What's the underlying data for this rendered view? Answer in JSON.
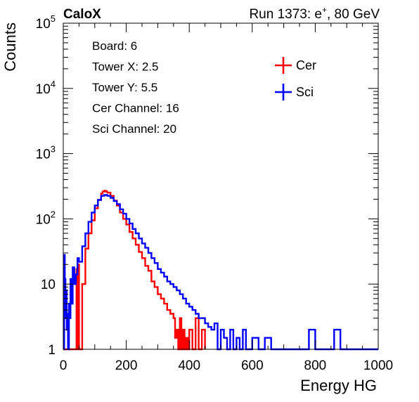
{
  "header": {
    "brand": "CaloX",
    "run_prefix": "Run 1373: e",
    "run_sup": "+",
    "run_suffix": ", 80 GeV"
  },
  "info": [
    {
      "key": "board",
      "text": "Board: 6"
    },
    {
      "key": "tower-x",
      "text": "Tower X: 2.5"
    },
    {
      "key": "tower-y",
      "text": "Tower Y: 5.5"
    },
    {
      "key": "cer-channel",
      "text": "Cer Channel: 16"
    },
    {
      "key": "sci-channel",
      "text": "Sci Channel: 20"
    }
  ],
  "chart_data": {
    "type": "line",
    "title": "",
    "xlabel": "Energy HG",
    "ylabel": "Counts",
    "xlim": [
      0,
      1000
    ],
    "ylim": [
      1,
      100000
    ],
    "yscale": "log",
    "grid": false,
    "legend_position": "top-right",
    "x_ticks": [
      {
        "value": 0,
        "label": "0"
      },
      {
        "value": 200,
        "label": "200"
      },
      {
        "value": 400,
        "label": "400"
      },
      {
        "value": 600,
        "label": "600"
      },
      {
        "value": 800,
        "label": "800"
      },
      {
        "value": 1000,
        "label": "1000"
      }
    ],
    "y_ticks": [
      {
        "value": 1,
        "base": "1",
        "exp": ""
      },
      {
        "value": 10,
        "base": "10",
        "exp": ""
      },
      {
        "value": 100,
        "base": "10",
        "exp": "2"
      },
      {
        "value": 1000,
        "base": "10",
        "exp": "3"
      },
      {
        "value": 10000,
        "base": "10",
        "exp": "4"
      },
      {
        "value": 100000,
        "base": "10",
        "exp": "5"
      }
    ],
    "series": [
      {
        "name": "Cer",
        "color": "#ff0000",
        "points": [
          [
            0,
            1
          ],
          [
            40,
            1
          ],
          [
            42,
            17
          ],
          [
            44,
            1
          ],
          [
            46,
            1
          ],
          [
            48,
            20
          ],
          [
            50,
            1
          ],
          [
            60,
            10
          ],
          [
            70,
            35
          ],
          [
            80,
            60
          ],
          [
            90,
            95
          ],
          [
            100,
            145
          ],
          [
            110,
            195
          ],
          [
            120,
            245
          ],
          [
            125,
            262
          ],
          [
            130,
            270
          ],
          [
            135,
            262
          ],
          [
            140,
            252
          ],
          [
            150,
            225
          ],
          [
            160,
            190
          ],
          [
            170,
            160
          ],
          [
            180,
            125
          ],
          [
            190,
            100
          ],
          [
            200,
            82
          ],
          [
            210,
            63
          ],
          [
            220,
            50
          ],
          [
            230,
            40
          ],
          [
            240,
            31
          ],
          [
            250,
            25
          ],
          [
            260,
            19
          ],
          [
            270,
            16
          ],
          [
            280,
            11
          ],
          [
            290,
            9
          ],
          [
            300,
            7
          ],
          [
            310,
            6
          ],
          [
            320,
            5
          ],
          [
            330,
            4
          ],
          [
            340,
            3.5
          ],
          [
            350,
            3
          ],
          [
            355,
            1.5
          ],
          [
            360,
            2
          ],
          [
            365,
            1
          ],
          [
            370,
            3
          ],
          [
            375,
            1
          ],
          [
            380,
            2
          ],
          [
            385,
            1
          ],
          [
            390,
            1.5
          ],
          [
            395,
            1
          ],
          [
            400,
            2
          ],
          [
            410,
            1
          ],
          [
            420,
            3
          ],
          [
            430,
            1
          ],
          [
            440,
            2
          ],
          [
            450,
            1
          ]
        ]
      },
      {
        "name": "Sci",
        "color": "#0000ff",
        "points": [
          [
            0,
            1
          ],
          [
            3,
            28
          ],
          [
            5,
            12
          ],
          [
            7,
            3
          ],
          [
            9,
            8
          ],
          [
            11,
            2
          ],
          [
            13,
            3.5
          ],
          [
            15,
            1
          ],
          [
            18,
            5
          ],
          [
            20,
            3
          ],
          [
            23,
            12
          ],
          [
            26,
            5
          ],
          [
            30,
            18
          ],
          [
            35,
            10
          ],
          [
            40,
            14
          ],
          [
            45,
            25
          ],
          [
            50,
            22
          ],
          [
            60,
            38
          ],
          [
            70,
            60
          ],
          [
            80,
            90
          ],
          [
            90,
            125
          ],
          [
            100,
            160
          ],
          [
            110,
            195
          ],
          [
            120,
            225
          ],
          [
            130,
            232
          ],
          [
            140,
            225
          ],
          [
            150,
            210
          ],
          [
            160,
            188
          ],
          [
            170,
            168
          ],
          [
            180,
            140
          ],
          [
            190,
            120
          ],
          [
            200,
            100
          ],
          [
            210,
            85
          ],
          [
            220,
            70
          ],
          [
            230,
            60
          ],
          [
            240,
            50
          ],
          [
            250,
            42
          ],
          [
            260,
            36
          ],
          [
            270,
            30
          ],
          [
            280,
            25
          ],
          [
            290,
            21
          ],
          [
            300,
            17
          ],
          [
            310,
            15
          ],
          [
            320,
            13
          ],
          [
            330,
            11
          ],
          [
            340,
            10
          ],
          [
            350,
            9
          ],
          [
            360,
            8
          ],
          [
            370,
            7
          ],
          [
            380,
            6
          ],
          [
            390,
            5
          ],
          [
            400,
            4.5
          ],
          [
            410,
            4
          ],
          [
            420,
            3.5
          ],
          [
            430,
            3
          ],
          [
            440,
            3
          ],
          [
            450,
            2.5
          ],
          [
            460,
            2.2
          ],
          [
            470,
            2
          ],
          [
            480,
            2.5
          ],
          [
            490,
            1
          ],
          [
            500,
            2
          ],
          [
            510,
            1.5
          ],
          [
            520,
            1
          ],
          [
            530,
            2
          ],
          [
            540,
            1
          ],
          [
            550,
            1.5
          ],
          [
            560,
            1
          ],
          [
            570,
            2
          ],
          [
            580,
            1
          ],
          [
            600,
            1.5
          ],
          [
            620,
            1
          ],
          [
            640,
            1.5
          ],
          [
            660,
            1
          ],
          [
            700,
            1
          ],
          [
            780,
            2
          ],
          [
            800,
            1
          ],
          [
            860,
            2
          ],
          [
            880,
            1
          ],
          [
            1000,
            1
          ]
        ]
      }
    ]
  }
}
